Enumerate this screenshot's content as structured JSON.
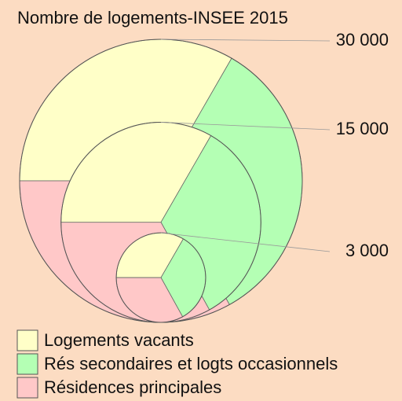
{
  "legend": {
    "title": "Nombre de logements-INSEE 2015",
    "sizes": [
      {
        "value": 30000,
        "label": "30 000"
      },
      {
        "value": 15000,
        "label": "15 000"
      },
      {
        "value": 3000,
        "label": "3 000"
      }
    ],
    "categories": [
      {
        "label": "Logements vacants",
        "color": "#ffffc8"
      },
      {
        "label": "Rés secondaires et logts occasionnels",
        "color": "#b4ffb4"
      },
      {
        "label": "Résidences principales",
        "color": "#ffc8c8"
      }
    ]
  }
}
